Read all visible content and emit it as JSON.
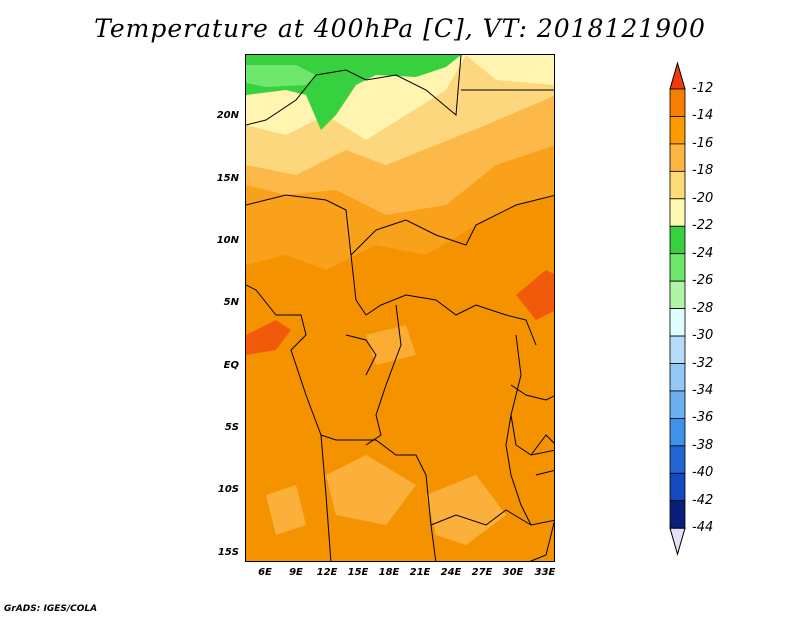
{
  "title": "Temperature at 400hPa [C], VT: 2018121900",
  "credit": "GrADS: IGES/COLA",
  "lat_ticks": [
    "20N",
    "15N",
    "10N",
    "5N",
    "EQ",
    "5S",
    "10S",
    "15S"
  ],
  "lon_ticks": [
    "6E",
    "9E",
    "12E",
    "15E",
    "18E",
    "21E",
    "24E",
    "27E",
    "30E",
    "33E"
  ],
  "colorbar": {
    "labels": [
      "-12",
      "-14",
      "-16",
      "-18",
      "-20",
      "-22",
      "-24",
      "-26",
      "-28",
      "-30",
      "-32",
      "-34",
      "-36",
      "-38",
      "-40",
      "-42",
      "-44"
    ],
    "colors": [
      "#f03c0a",
      "#f77f00",
      "#fb9b00",
      "#fcb53e",
      "#fddb77",
      "#fffab3",
      "#37d13f",
      "#6de86b",
      "#aef5a8",
      "#e1fefe",
      "#b6dcf9",
      "#94c8f6",
      "#6ab0f1",
      "#3f91ec",
      "#2566d7",
      "#1449c0",
      "#0a1f7a",
      "#08135c"
    ],
    "over_color": "#f03c0a",
    "under_color": "#e6e0fb"
  }
}
